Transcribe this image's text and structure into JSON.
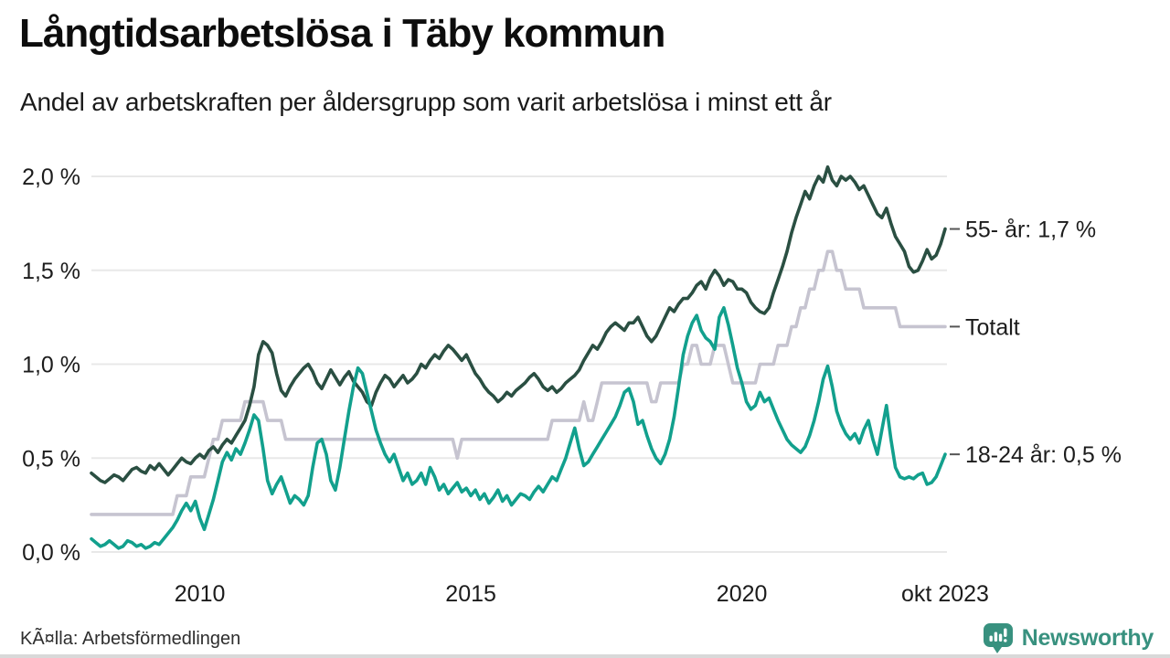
{
  "header": {
    "title": "Långtidsarbetslösa i Täby kommun",
    "subtitle": "Andel av arbetskraften per åldersgrupp som varit arbetslösa i minst ett år"
  },
  "footer": {
    "source": "KÃ¤lla: Arbetsförmedlingen",
    "brand": "Newsworthy"
  },
  "colors": {
    "series_55": "#2a4f42",
    "series_total": "#c6c4d0",
    "series_18_24": "#12a08d",
    "grid": "#e8e8e8",
    "end_tick": "#555555",
    "brand_teal": "#38917f",
    "text": "#1c1c1c"
  },
  "chart_data": {
    "type": "line",
    "title": "Långtidsarbetslösa i Täby kommun",
    "subtitle": "Andel av arbetskraften per åldersgrupp som varit arbetslösa i minst ett år",
    "x_start": "2008-01",
    "x_end": "2023-10",
    "x_unit": "month",
    "xlabel": "",
    "ylabel": "",
    "ylim": [
      0,
      2.05
    ],
    "grid": "horizontal",
    "legend_position": "right-end-labels",
    "y_tick_labels": [
      "0,0 %",
      "0,5 %",
      "1,0 %",
      "1,5 %",
      "2,0 %"
    ],
    "y_tick_values": [
      0,
      0.5,
      1.0,
      1.5,
      2.0
    ],
    "x_tick_labels": [
      "2010",
      "2015",
      "2020",
      "okt 2023"
    ],
    "x_tick_months": [
      24,
      84,
      144,
      189
    ],
    "series": [
      {
        "name": "Totalt",
        "label": "Totalt",
        "end_value": 1.2,
        "color": "#c6c4d0",
        "values": [
          0.2,
          0.2,
          0.2,
          0.2,
          0.2,
          0.2,
          0.2,
          0.2,
          0.2,
          0.2,
          0.2,
          0.2,
          0.2,
          0.2,
          0.2,
          0.2,
          0.2,
          0.2,
          0.2,
          0.3,
          0.3,
          0.3,
          0.4,
          0.4,
          0.4,
          0.4,
          0.5,
          0.6,
          0.6,
          0.7,
          0.7,
          0.7,
          0.7,
          0.7,
          0.8,
          0.8,
          0.8,
          0.8,
          0.8,
          0.7,
          0.7,
          0.7,
          0.7,
          0.6,
          0.6,
          0.6,
          0.6,
          0.6,
          0.6,
          0.6,
          0.6,
          0.6,
          0.6,
          0.6,
          0.6,
          0.6,
          0.6,
          0.6,
          0.6,
          0.6,
          0.6,
          0.6,
          0.6,
          0.6,
          0.6,
          0.6,
          0.6,
          0.6,
          0.6,
          0.6,
          0.6,
          0.6,
          0.6,
          0.6,
          0.6,
          0.6,
          0.6,
          0.6,
          0.6,
          0.6,
          0.6,
          0.5,
          0.6,
          0.6,
          0.6,
          0.6,
          0.6,
          0.6,
          0.6,
          0.6,
          0.6,
          0.6,
          0.6,
          0.6,
          0.6,
          0.6,
          0.6,
          0.6,
          0.6,
          0.6,
          0.6,
          0.6,
          0.7,
          0.7,
          0.7,
          0.7,
          0.7,
          0.7,
          0.7,
          0.8,
          0.7,
          0.7,
          0.8,
          0.9,
          0.9,
          0.9,
          0.9,
          0.9,
          0.9,
          0.9,
          0.9,
          0.9,
          0.9,
          0.9,
          0.8,
          0.8,
          0.9,
          0.9,
          0.9,
          0.9,
          0.9,
          1.0,
          1.0,
          1.1,
          1.1,
          1.0,
          1.0,
          1.0,
          1.1,
          1.1,
          1.1,
          1.0,
          0.9,
          0.9,
          0.9,
          0.9,
          0.9,
          0.9,
          1.0,
          1.0,
          1.0,
          1.0,
          1.1,
          1.1,
          1.1,
          1.2,
          1.2,
          1.3,
          1.3,
          1.4,
          1.4,
          1.5,
          1.5,
          1.6,
          1.6,
          1.5,
          1.5,
          1.4,
          1.4,
          1.4,
          1.4,
          1.3,
          1.3,
          1.3,
          1.3,
          1.3,
          1.3,
          1.3,
          1.3,
          1.2,
          1.2,
          1.2,
          1.2,
          1.2,
          1.2,
          1.2,
          1.2,
          1.2,
          1.2,
          1.2
        ]
      },
      {
        "name": "55- år",
        "label": "55- år: 1,7 %",
        "end_value": 1.7,
        "color": "#2a4f42",
        "values": [
          0.42,
          0.4,
          0.38,
          0.37,
          0.39,
          0.41,
          0.4,
          0.38,
          0.41,
          0.44,
          0.45,
          0.43,
          0.42,
          0.46,
          0.44,
          0.47,
          0.44,
          0.41,
          0.44,
          0.47,
          0.5,
          0.48,
          0.47,
          0.5,
          0.52,
          0.5,
          0.54,
          0.56,
          0.53,
          0.57,
          0.6,
          0.58,
          0.62,
          0.66,
          0.7,
          0.78,
          0.88,
          1.05,
          1.12,
          1.1,
          1.06,
          0.95,
          0.86,
          0.83,
          0.88,
          0.92,
          0.95,
          0.98,
          1.0,
          0.96,
          0.9,
          0.87,
          0.92,
          0.97,
          0.93,
          0.89,
          0.93,
          0.96,
          0.91,
          0.88,
          0.85,
          0.8,
          0.78,
          0.85,
          0.9,
          0.94,
          0.92,
          0.88,
          0.91,
          0.94,
          0.9,
          0.92,
          0.95,
          1.0,
          0.98,
          1.02,
          1.05,
          1.03,
          1.07,
          1.1,
          1.08,
          1.05,
          1.02,
          1.05,
          1.0,
          0.95,
          0.92,
          0.88,
          0.85,
          0.83,
          0.8,
          0.82,
          0.85,
          0.83,
          0.86,
          0.88,
          0.9,
          0.93,
          0.95,
          0.92,
          0.88,
          0.86,
          0.88,
          0.85,
          0.87,
          0.9,
          0.92,
          0.94,
          0.97,
          1.02,
          1.06,
          1.1,
          1.08,
          1.12,
          1.17,
          1.2,
          1.22,
          1.2,
          1.18,
          1.22,
          1.22,
          1.25,
          1.2,
          1.15,
          1.12,
          1.15,
          1.2,
          1.25,
          1.3,
          1.28,
          1.32,
          1.35,
          1.35,
          1.38,
          1.42,
          1.44,
          1.4,
          1.46,
          1.5,
          1.47,
          1.42,
          1.45,
          1.44,
          1.4,
          1.4,
          1.38,
          1.33,
          1.3,
          1.28,
          1.27,
          1.3,
          1.38,
          1.45,
          1.52,
          1.6,
          1.7,
          1.78,
          1.85,
          1.92,
          1.88,
          1.95,
          2.0,
          1.97,
          2.05,
          1.98,
          1.95,
          2.0,
          1.98,
          2.0,
          1.97,
          1.93,
          1.95,
          1.9,
          1.85,
          1.8,
          1.78,
          1.83,
          1.75,
          1.68,
          1.64,
          1.6,
          1.52,
          1.49,
          1.5,
          1.55,
          1.61,
          1.56,
          1.58,
          1.64,
          1.72
        ]
      },
      {
        "name": "18-24 år",
        "label": "18-24 år: 0,5 %",
        "end_value": 0.5,
        "color": "#12a08d",
        "values": [
          0.07,
          0.05,
          0.03,
          0.04,
          0.06,
          0.04,
          0.02,
          0.03,
          0.06,
          0.05,
          0.03,
          0.04,
          0.02,
          0.03,
          0.05,
          0.04,
          0.07,
          0.1,
          0.13,
          0.17,
          0.22,
          0.26,
          0.22,
          0.27,
          0.18,
          0.12,
          0.2,
          0.28,
          0.38,
          0.48,
          0.53,
          0.49,
          0.55,
          0.52,
          0.58,
          0.65,
          0.73,
          0.7,
          0.55,
          0.38,
          0.31,
          0.36,
          0.4,
          0.33,
          0.26,
          0.3,
          0.28,
          0.25,
          0.3,
          0.45,
          0.58,
          0.6,
          0.52,
          0.38,
          0.33,
          0.45,
          0.6,
          0.75,
          0.88,
          0.98,
          0.95,
          0.85,
          0.75,
          0.65,
          0.58,
          0.52,
          0.48,
          0.52,
          0.45,
          0.38,
          0.42,
          0.36,
          0.38,
          0.42,
          0.36,
          0.45,
          0.4,
          0.33,
          0.36,
          0.31,
          0.34,
          0.37,
          0.32,
          0.34,
          0.3,
          0.33,
          0.28,
          0.31,
          0.26,
          0.29,
          0.33,
          0.27,
          0.3,
          0.25,
          0.28,
          0.31,
          0.3,
          0.28,
          0.32,
          0.35,
          0.32,
          0.36,
          0.4,
          0.38,
          0.44,
          0.5,
          0.58,
          0.66,
          0.55,
          0.46,
          0.48,
          0.52,
          0.56,
          0.6,
          0.64,
          0.68,
          0.72,
          0.78,
          0.85,
          0.87,
          0.8,
          0.68,
          0.7,
          0.62,
          0.55,
          0.5,
          0.47,
          0.52,
          0.6,
          0.72,
          0.88,
          1.05,
          1.15,
          1.22,
          1.26,
          1.18,
          1.14,
          1.12,
          1.08,
          1.25,
          1.3,
          1.21,
          1.1,
          0.98,
          0.9,
          0.8,
          0.76,
          0.78,
          0.85,
          0.8,
          0.82,
          0.76,
          0.7,
          0.65,
          0.6,
          0.57,
          0.55,
          0.53,
          0.56,
          0.62,
          0.7,
          0.8,
          0.92,
          0.99,
          0.88,
          0.75,
          0.68,
          0.63,
          0.6,
          0.63,
          0.58,
          0.65,
          0.7,
          0.6,
          0.52,
          0.65,
          0.78,
          0.6,
          0.45,
          0.4,
          0.39,
          0.4,
          0.39,
          0.41,
          0.42,
          0.36,
          0.37,
          0.4,
          0.46,
          0.52
        ]
      }
    ]
  }
}
